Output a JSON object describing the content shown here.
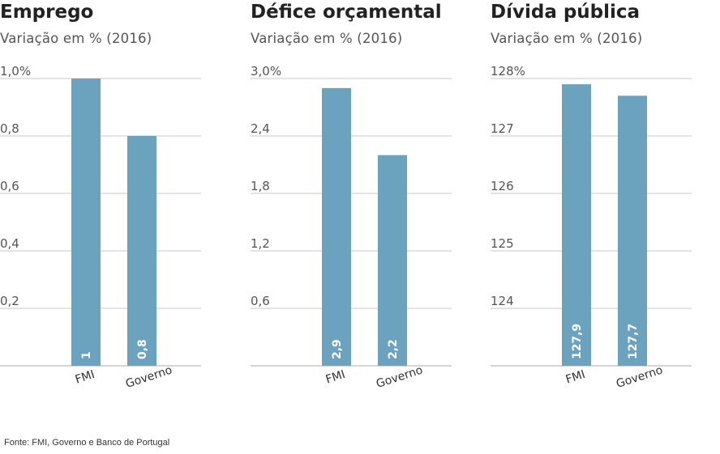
{
  "bar_color": "#6ba3bf",
  "grid_color": "#c8c8c8",
  "chart_data": [
    {
      "type": "bar",
      "title": "Emprego",
      "subtitle": "Variação em % (2016)",
      "categories": [
        "FMI",
        "Governo"
      ],
      "values": [
        1.0,
        0.8
      ],
      "value_labels": [
        "1",
        "0,8"
      ],
      "yticks": [
        0.2,
        0.4,
        0.6,
        0.8,
        1.0
      ],
      "ytick_labels": [
        "0,2",
        "0,4",
        "0,6",
        "0,8",
        "1,0%"
      ],
      "ylim": [
        0,
        1.0
      ],
      "grid": true
    },
    {
      "type": "bar",
      "title": "Défice orçamental",
      "subtitle": "Variação em % (2016)",
      "categories": [
        "FMI",
        "Governo"
      ],
      "values": [
        2.9,
        2.2
      ],
      "value_labels": [
        "2,9",
        "2,2"
      ],
      "yticks": [
        0.6,
        1.2,
        1.8,
        2.4,
        3.0
      ],
      "ytick_labels": [
        "0,6",
        "1,2",
        "1,8",
        "2,4",
        "3,0%"
      ],
      "ylim": [
        0,
        3.0
      ],
      "grid": true
    },
    {
      "type": "bar",
      "title": "Dívida pública",
      "subtitle": "Variação em % (2016)",
      "categories": [
        "FMI",
        "Governo"
      ],
      "values": [
        127.9,
        127.7
      ],
      "value_labels": [
        "127,9",
        "127,7"
      ],
      "yticks": [
        124,
        125,
        126,
        127,
        128
      ],
      "ytick_labels": [
        "124",
        "125",
        "126",
        "127",
        "128%"
      ],
      "ylim": [
        123,
        128
      ],
      "grid": true
    }
  ],
  "source": "Fonte: FMI, Governo e Banco de Portugal"
}
